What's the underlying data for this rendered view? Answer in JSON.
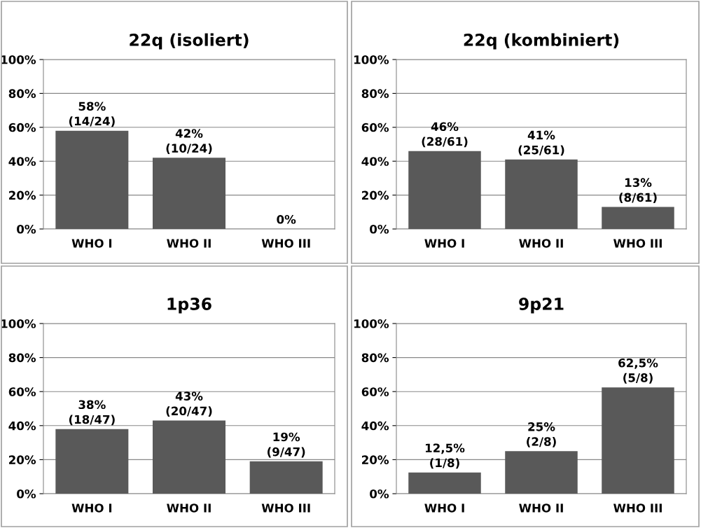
{
  "chart_data": [
    {
      "type": "bar",
      "title": "22q (isoliert)",
      "categories": [
        "WHO I",
        "WHO II",
        "WHO III"
      ],
      "values": [
        58,
        42,
        0
      ],
      "color": "#595959",
      "value_labels": [
        "58%\n(14/24)",
        "42%\n(10/24)",
        "0%"
      ],
      "ylim": [
        0,
        100
      ],
      "yticks": [
        {
          "value": 0,
          "label": "0%"
        },
        {
          "value": 20,
          "label": "20%"
        },
        {
          "value": 40,
          "label": "40%"
        },
        {
          "value": 60,
          "label": "60%"
        },
        {
          "value": 80,
          "label": "80%"
        },
        {
          "value": 100,
          "label": "100%"
        }
      ],
      "grid": "y",
      "legend": false
    },
    {
      "type": "bar",
      "title": "22q (kombiniert)",
      "categories": [
        "WHO I",
        "WHO II",
        "WHO III"
      ],
      "values": [
        46,
        41,
        13
      ],
      "color": "#595959",
      "value_labels": [
        "46%\n(28/61)",
        "41%\n(25/61)",
        "13%\n(8/61)"
      ],
      "ylim": [
        0,
        100
      ],
      "yticks": [
        {
          "value": 0,
          "label": "0%"
        },
        {
          "value": 20,
          "label": "20%"
        },
        {
          "value": 40,
          "label": "40%"
        },
        {
          "value": 60,
          "label": "60%"
        },
        {
          "value": 80,
          "label": "80%"
        },
        {
          "value": 100,
          "label": "100%"
        }
      ],
      "grid": "y",
      "legend": false
    },
    {
      "type": "bar",
      "title": "1p36",
      "categories": [
        "WHO I",
        "WHO II",
        "WHO III"
      ],
      "values": [
        38,
        43,
        19
      ],
      "color": "#595959",
      "value_labels": [
        "38%\n(18/47)",
        "43%\n(20/47)",
        "19%\n(9/47)"
      ],
      "ylim": [
        0,
        100
      ],
      "yticks": [
        {
          "value": 0,
          "label": "0%"
        },
        {
          "value": 20,
          "label": "20%"
        },
        {
          "value": 40,
          "label": "40%"
        },
        {
          "value": 60,
          "label": "60%"
        },
        {
          "value": 80,
          "label": "80%"
        },
        {
          "value": 100,
          "label": "100%"
        }
      ],
      "grid": "y",
      "legend": false
    },
    {
      "type": "bar",
      "title": "9p21",
      "categories": [
        "WHO I",
        "WHO II",
        "WHO III"
      ],
      "values": [
        12.5,
        25,
        62.5
      ],
      "color": "#595959",
      "value_labels": [
        "12,5%\n(1/8)",
        "25%\n(2/8)",
        "62,5%\n(5/8)"
      ],
      "ylim": [
        0,
        100
      ],
      "yticks": [
        {
          "value": 0,
          "label": "0%"
        },
        {
          "value": 20,
          "label": "20%"
        },
        {
          "value": 40,
          "label": "40%"
        },
        {
          "value": 60,
          "label": "60%"
        },
        {
          "value": 80,
          "label": "80%"
        },
        {
          "value": 100,
          "label": "100%"
        }
      ],
      "grid": "y",
      "legend": false
    }
  ]
}
